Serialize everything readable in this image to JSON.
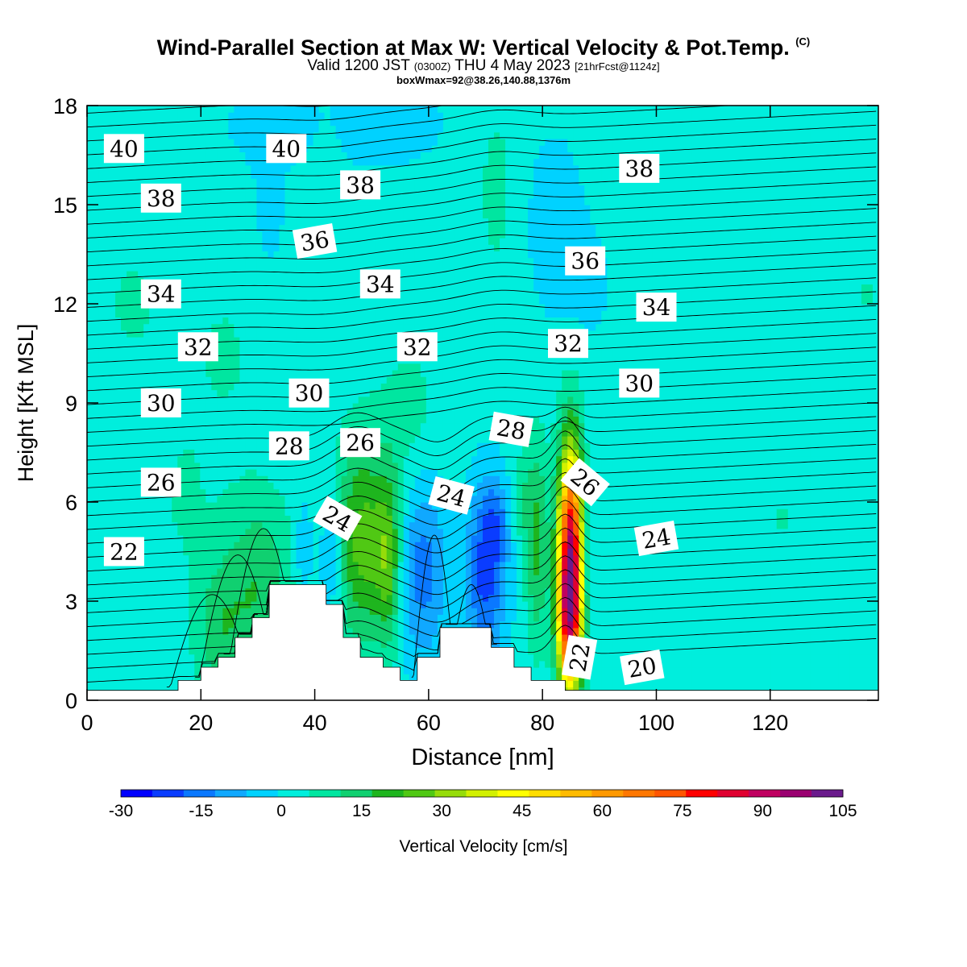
{
  "header": {
    "title_main": "Wind-Parallel Section at Max W: Vertical Velocity & Pot.Temp.",
    "title_suffix": "(C)",
    "valid_a": "Valid 1200 JST",
    "valid_z": "(0300Z)",
    "valid_b": "THU 4 May 2023",
    "valid_fcst": "[21hrFcst@1124z]",
    "box_line": "boxWmax=92@38.26,140.88,1376m"
  },
  "colorbar": {
    "title": "Vertical Velocity [cm/s]",
    "tick_labels": [
      "-30",
      "-15",
      "0",
      "15",
      "30",
      "45",
      "60",
      "75",
      "90",
      "105"
    ],
    "colors": [
      "#0000ff",
      "#0a3cff",
      "#0a78ff",
      "#10a8ff",
      "#00d2ff",
      "#00eedd",
      "#00e6a0",
      "#10d070",
      "#1eb51e",
      "#50c814",
      "#96dc0a",
      "#d2f000",
      "#ffff00",
      "#ffdd00",
      "#ffbb00",
      "#ff9900",
      "#ff7700",
      "#ff5500",
      "#ff0000",
      "#e00030",
      "#c00060",
      "#9a0070",
      "#6a1a8c"
    ]
  },
  "chart_data": {
    "type": "heatmap",
    "title": "Wind-Parallel Section at Max W: Vertical Velocity & Pot.Temp.",
    "xlabel": "Distance [nm]",
    "ylabel": "Height [Kft MSL]",
    "xlim": [
      0,
      139
    ],
    "ylim": [
      0,
      18
    ],
    "xticks": [
      0,
      20,
      40,
      60,
      80,
      100,
      120
    ],
    "yticks": [
      0,
      3,
      6,
      9,
      12,
      15,
      18
    ],
    "color_range": [
      -30,
      105
    ],
    "color_units": "cm/s",
    "box_wmax": {
      "value": 92,
      "lat": 38.26,
      "lon": 140.88,
      "elevation_m": 1376
    },
    "terrain_steps": [
      [
        0,
        0.3
      ],
      [
        16,
        0.6
      ],
      [
        20,
        1.0
      ],
      [
        23,
        1.3
      ],
      [
        26,
        1.9
      ],
      [
        29,
        2.5
      ],
      [
        32,
        3.5
      ],
      [
        42,
        2.9
      ],
      [
        45,
        1.9
      ],
      [
        48,
        1.3
      ],
      [
        52,
        1.0
      ],
      [
        55,
        0.6
      ],
      [
        58,
        1.3
      ],
      [
        62,
        2.2
      ],
      [
        71,
        1.6
      ],
      [
        75,
        1.0
      ],
      [
        78,
        0.6
      ],
      [
        84,
        0.3
      ],
      [
        139,
        0.3
      ]
    ],
    "w_features": [
      {
        "x": 85,
        "y": 4.2,
        "sx": 1.6,
        "sy": 2.4,
        "w": 92
      },
      {
        "x": 84.5,
        "y": 2.2,
        "sx": 1.4,
        "sy": 1.4,
        "w": 30
      },
      {
        "x": 87.5,
        "y": 4.5,
        "sx": 1.0,
        "sy": 1.8,
        "w": -12
      },
      {
        "x": 48.5,
        "y": 4.8,
        "sx": 3.5,
        "sy": 2.2,
        "w": 24
      },
      {
        "x": 53,
        "y": 4.2,
        "sx": 1.5,
        "sy": 1.8,
        "w": 18
      },
      {
        "x": 43,
        "y": 4.3,
        "sx": 1.5,
        "sy": 1.3,
        "w": -12
      },
      {
        "x": 38,
        "y": 4.5,
        "sx": 1.2,
        "sy": 1.2,
        "w": -8
      },
      {
        "x": 59,
        "y": 4.0,
        "sx": 3.0,
        "sy": 2.0,
        "w": -17
      },
      {
        "x": 70,
        "y": 3.8,
        "sx": 2.5,
        "sy": 1.8,
        "w": -22
      },
      {
        "x": 72,
        "y": 5.5,
        "sx": 2.0,
        "sy": 1.0,
        "w": -10
      },
      {
        "x": 79,
        "y": 4.8,
        "sx": 1.4,
        "sy": 2.2,
        "w": 17
      },
      {
        "x": 76,
        "y": 6.0,
        "sx": 1.5,
        "sy": 1.0,
        "w": 8
      },
      {
        "x": 30,
        "y": 3.4,
        "sx": 4.5,
        "sy": 2.0,
        "w": 15
      },
      {
        "x": 23,
        "y": 2.0,
        "sx": 3.0,
        "sy": 1.5,
        "w": 11
      },
      {
        "x": 17,
        "y": 6.0,
        "sx": 4.0,
        "sy": 2.0,
        "w": 4
      },
      {
        "x": 8,
        "y": 12.0,
        "sx": 7.0,
        "sy": 2.5,
        "w": 4
      },
      {
        "x": 25,
        "y": 10.5,
        "sx": 5.0,
        "sy": 2.0,
        "w": 4
      },
      {
        "x": 57,
        "y": 8.5,
        "sx": 4.0,
        "sy": 1.8,
        "w": 6
      },
      {
        "x": 72,
        "y": 15.5,
        "sx": 3.0,
        "sy": 2.5,
        "w": 5
      },
      {
        "x": 82,
        "y": 14.5,
        "sx": 3.5,
        "sy": 1.8,
        "w": -6
      },
      {
        "x": 42,
        "y": 16.5,
        "sx": 2.0,
        "sy": 1.5,
        "w": 4
      },
      {
        "x": 52,
        "y": 17.5,
        "sx": 8.0,
        "sy": 1.0,
        "w": -5
      },
      {
        "x": 35,
        "y": 17.5,
        "sx": 8.0,
        "sy": 0.8,
        "w": -4
      },
      {
        "x": 10,
        "y": 16.5,
        "sx": 10.0,
        "sy": 1.0,
        "w": -2
      },
      {
        "x": 88,
        "y": 12.5,
        "sx": 4.0,
        "sy": 1.5,
        "w": -3
      },
      {
        "x": 122,
        "y": 5.5,
        "sx": 2.5,
        "sy": 0.8,
        "w": 4
      },
      {
        "x": 104,
        "y": 5.8,
        "sx": 5.0,
        "sy": 1.0,
        "w": 3
      },
      {
        "x": 137,
        "y": 12.3,
        "sx": 2.0,
        "sy": 1.2,
        "w": 4
      },
      {
        "x": 32,
        "y": 14.5,
        "sx": 3.0,
        "sy": 2.0,
        "w": -3
      }
    ],
    "theta_labels": [
      {
        "text": "40",
        "x": 6.5,
        "y": 16.7,
        "rot": 0
      },
      {
        "text": "40",
        "x": 35,
        "y": 16.7,
        "rot": 0
      },
      {
        "text": "38",
        "x": 13,
        "y": 15.2,
        "rot": 0
      },
      {
        "text": "38",
        "x": 48,
        "y": 15.6,
        "rot": 0
      },
      {
        "text": "38",
        "x": 97,
        "y": 16.1,
        "rot": 0
      },
      {
        "text": "36",
        "x": 40,
        "y": 13.9,
        "rot": -10
      },
      {
        "text": "36",
        "x": 87.5,
        "y": 13.3,
        "rot": 0
      },
      {
        "text": "34",
        "x": 13,
        "y": 12.3,
        "rot": 0
      },
      {
        "text": "34",
        "x": 51.5,
        "y": 12.6,
        "rot": 0
      },
      {
        "text": "34",
        "x": 100,
        "y": 11.9,
        "rot": 0
      },
      {
        "text": "32",
        "x": 19.5,
        "y": 10.7,
        "rot": 0
      },
      {
        "text": "32",
        "x": 58,
        "y": 10.7,
        "rot": 0
      },
      {
        "text": "32",
        "x": 84.5,
        "y": 10.8,
        "rot": 0
      },
      {
        "text": "30",
        "x": 13,
        "y": 9.0,
        "rot": 0
      },
      {
        "text": "30",
        "x": 39,
        "y": 9.3,
        "rot": 0
      },
      {
        "text": "30",
        "x": 97,
        "y": 9.6,
        "rot": 0
      },
      {
        "text": "28",
        "x": 35.5,
        "y": 7.7,
        "rot": 0
      },
      {
        "text": "28",
        "x": 74.5,
        "y": 8.2,
        "rot": 10
      },
      {
        "text": "26",
        "x": 13,
        "y": 6.6,
        "rot": 0
      },
      {
        "text": "26",
        "x": 48,
        "y": 7.8,
        "rot": 0
      },
      {
        "text": "26",
        "x": 87.5,
        "y": 6.6,
        "rot": 40
      },
      {
        "text": "24",
        "x": 44,
        "y": 5.5,
        "rot": 30
      },
      {
        "text": "24",
        "x": 64,
        "y": 6.2,
        "rot": 15
      },
      {
        "text": "24",
        "x": 100,
        "y": 4.9,
        "rot": -10
      },
      {
        "text": "22",
        "x": 6.5,
        "y": 4.5,
        "rot": 0
      },
      {
        "text": "22",
        "x": 86.5,
        "y": 1.3,
        "rot": -80
      },
      {
        "text": "20",
        "x": 97.5,
        "y": 1.0,
        "rot": -10
      }
    ]
  }
}
